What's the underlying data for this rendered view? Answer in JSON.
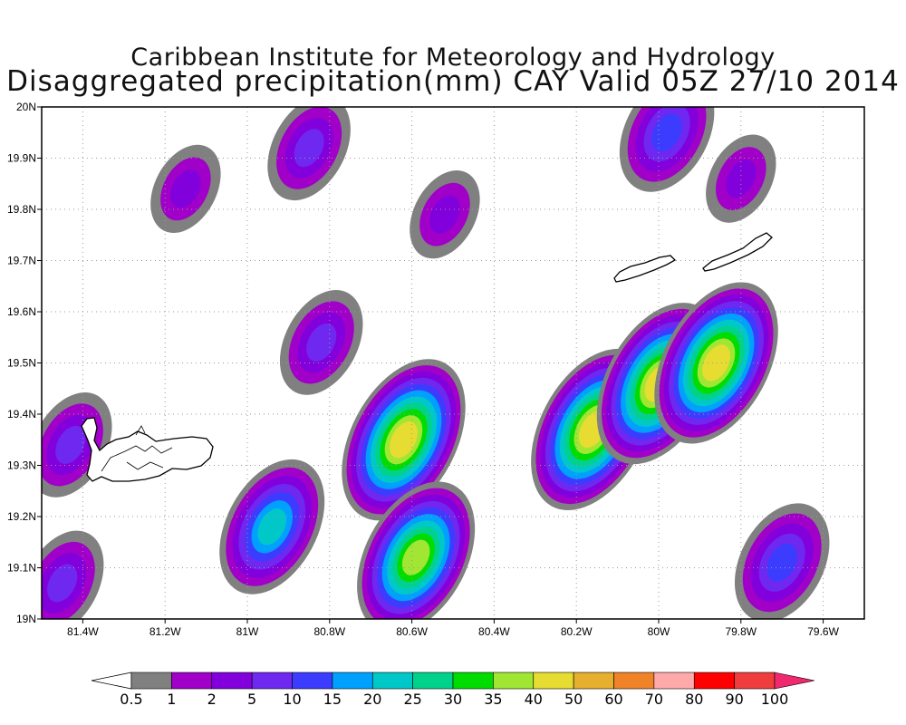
{
  "header": {
    "title_line1": "Caribbean Institute for Meteorology and Hydrology",
    "title_line2": "Disaggregated precipitation(mm) CAY Valid 05Z 27/10 2014"
  },
  "map": {
    "lon_range": [
      -81.5,
      -79.5
    ],
    "lat_range": [
      19.0,
      20.0
    ],
    "x_ticks": [
      {
        "lon": -81.4,
        "label": "81.4W"
      },
      {
        "lon": -81.2,
        "label": "81.2W"
      },
      {
        "lon": -81.0,
        "label": "81W"
      },
      {
        "lon": -80.8,
        "label": "80.8W"
      },
      {
        "lon": -80.6,
        "label": "80.6W"
      },
      {
        "lon": -80.4,
        "label": "80.4W"
      },
      {
        "lon": -80.2,
        "label": "80.2W"
      },
      {
        "lon": -80.0,
        "label": "80W"
      },
      {
        "lon": -79.8,
        "label": "79.8W"
      },
      {
        "lon": -79.6,
        "label": "79.6W"
      }
    ],
    "y_ticks": [
      {
        "lat": 19.0,
        "label": "19N"
      },
      {
        "lat": 19.1,
        "label": "19.1N"
      },
      {
        "lat": 19.2,
        "label": "19.2N"
      },
      {
        "lat": 19.3,
        "label": "19.3N"
      },
      {
        "lat": 19.4,
        "label": "19.4N"
      },
      {
        "lat": 19.5,
        "label": "19.5N"
      },
      {
        "lat": 19.6,
        "label": "19.6N"
      },
      {
        "lat": 19.7,
        "label": "19.7N"
      },
      {
        "lat": 19.8,
        "label": "19.8N"
      },
      {
        "lat": 19.9,
        "label": "19.9N"
      },
      {
        "lat": 20.0,
        "label": "20N"
      }
    ],
    "grid": "dotted",
    "islands": [
      "Grand Cayman",
      "Little Cayman",
      "Cayman Brac"
    ],
    "precip_cells": [
      {
        "lon": -81.43,
        "lat": 19.34,
        "peak": 5
      },
      {
        "lon": -81.45,
        "lat": 19.07,
        "peak": 5
      },
      {
        "lon": -81.15,
        "lat": 19.84,
        "peak": 2
      },
      {
        "lon": -80.85,
        "lat": 19.92,
        "peak": 5
      },
      {
        "lon": -80.52,
        "lat": 19.79,
        "peak": 2
      },
      {
        "lon": -80.94,
        "lat": 19.18,
        "peak": 20
      },
      {
        "lon": -80.82,
        "lat": 19.54,
        "peak": 5
      },
      {
        "lon": -80.62,
        "lat": 19.35,
        "peak": 40
      },
      {
        "lon": -80.59,
        "lat": 19.12,
        "peak": 35
      },
      {
        "lon": -80.16,
        "lat": 19.37,
        "peak": 40
      },
      {
        "lon": -80.0,
        "lat": 19.46,
        "peak": 40
      },
      {
        "lon": -79.86,
        "lat": 19.5,
        "peak": 40
      },
      {
        "lon": -79.98,
        "lat": 19.95,
        "peak": 10
      },
      {
        "lon": -79.8,
        "lat": 19.86,
        "peak": 2
      },
      {
        "lon": -79.7,
        "lat": 19.11,
        "peak": 10
      }
    ]
  },
  "colorbar": {
    "labels": [
      "0.5",
      "1",
      "2",
      "5",
      "10",
      "15",
      "20",
      "25",
      "30",
      "35",
      "40",
      "50",
      "60",
      "70",
      "80",
      "90",
      "100"
    ],
    "colors": [
      "#808080",
      "#a000c8",
      "#8200dc",
      "#6e28f0",
      "#3c3cff",
      "#00a0ff",
      "#00c8c8",
      "#00d28c",
      "#00dc00",
      "#a0e632",
      "#e6dc32",
      "#e6af2d",
      "#f08228",
      "#ffaaaa",
      "#ff0000",
      "#f03c3c",
      "#f0286e"
    ]
  }
}
